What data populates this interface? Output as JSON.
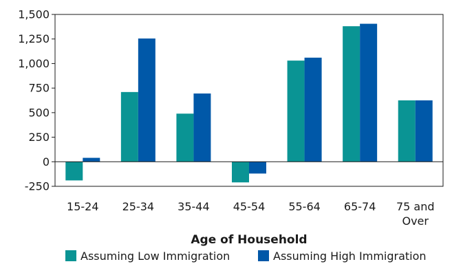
{
  "chart_data": {
    "type": "bar",
    "categories": [
      "15-24",
      "25-34",
      "35-44",
      "45-54",
      "55-64",
      "65-74",
      "75 and\nOver"
    ],
    "series": [
      {
        "name": "Assuming Low Immigration",
        "color": "#0a9494",
        "values": [
          -190,
          710,
          490,
          -210,
          1030,
          1380,
          625
        ]
      },
      {
        "name": "Assuming High Immigration",
        "color": "#0058a8",
        "values": [
          40,
          1255,
          695,
          -120,
          1060,
          1405,
          625
        ]
      }
    ],
    "xlabel": "Age of Household",
    "ylabel": "",
    "ylim": [
      -250,
      1500
    ],
    "yticks": [
      -250,
      0,
      250,
      500,
      750,
      1000,
      1250,
      1500
    ],
    "ytick_labels": [
      "-250",
      "0",
      "250",
      "500",
      "750",
      "1,000",
      "1,250",
      "1,500"
    ],
    "grid": false,
    "legend_position": "bottom"
  }
}
